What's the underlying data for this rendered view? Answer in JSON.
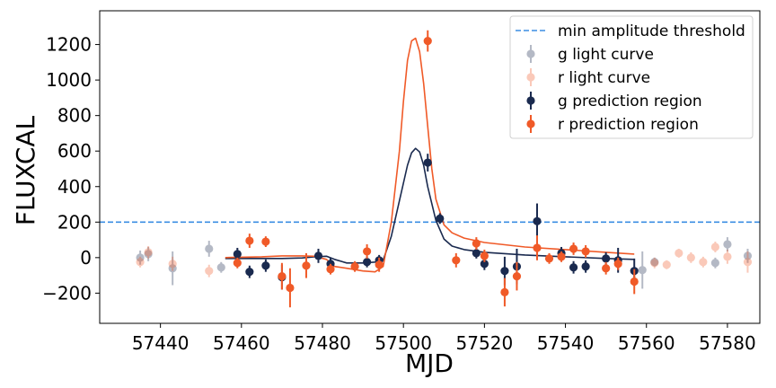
{
  "chart_data": {
    "type": "scatter",
    "xlabel": "MJD",
    "ylabel": "FLUXCAL",
    "xlim": [
      57425,
      57588
    ],
    "ylim": [
      -370,
      1390
    ],
    "xticks": [
      57440,
      57460,
      57480,
      57500,
      57520,
      57540,
      57560,
      57580
    ],
    "yticks": [
      -200,
      0,
      200,
      400,
      600,
      800,
      1000,
      1200
    ],
    "threshold": 200,
    "legend_position": "top-right",
    "colors": {
      "g": "#1a2a4f",
      "r": "#f05a28",
      "threshold": "#3b8ee3"
    },
    "legend": [
      {
        "label": "min amplitude threshold",
        "kind": "dash",
        "color": "#3b8ee3"
      },
      {
        "label": "g light curve",
        "kind": "point",
        "color": "#1a2a4f",
        "faded": true
      },
      {
        "label": "r light curve",
        "kind": "point",
        "color": "#f05a28",
        "faded": true
      },
      {
        "label": "g  prediction region",
        "kind": "point",
        "color": "#1a2a4f",
        "faded": false
      },
      {
        "label": "r  prediction region",
        "kind": "point",
        "color": "#f05a28",
        "faded": false
      }
    ],
    "series": [
      {
        "name": "g light curve",
        "color": "#1a2a4f",
        "points": [
          {
            "x": 57435,
            "y": 0,
            "err": 40
          },
          {
            "x": 57437,
            "y": 20,
            "err": 40
          },
          {
            "x": 57443,
            "y": -60,
            "err": 95
          },
          {
            "x": 57452,
            "y": 50,
            "err": 45
          },
          {
            "x": 57455,
            "y": -55,
            "err": 30
          },
          {
            "x": 57559,
            "y": -70,
            "err": 105
          },
          {
            "x": 57562,
            "y": -25,
            "err": 25
          },
          {
            "x": 57577,
            "y": -30,
            "err": 30
          },
          {
            "x": 57580,
            "y": 75,
            "err": 40
          },
          {
            "x": 57585,
            "y": 10,
            "err": 40
          }
        ]
      },
      {
        "name": "r light curve",
        "color": "#f05a28",
        "points": [
          {
            "x": 57435,
            "y": -25,
            "err": 30
          },
          {
            "x": 57437,
            "y": 30,
            "err": 35
          },
          {
            "x": 57443,
            "y": -35,
            "err": 40
          },
          {
            "x": 57452,
            "y": -75,
            "err": 35
          },
          {
            "x": 57562,
            "y": -30,
            "err": 30
          },
          {
            "x": 57565,
            "y": -40,
            "err": 25
          },
          {
            "x": 57568,
            "y": 25,
            "err": 25
          },
          {
            "x": 57571,
            "y": 0,
            "err": 30
          },
          {
            "x": 57574,
            "y": -25,
            "err": 30
          },
          {
            "x": 57577,
            "y": 60,
            "err": 30
          },
          {
            "x": 57580,
            "y": 5,
            "err": 40
          },
          {
            "x": 57585,
            "y": -25,
            "err": 60
          }
        ]
      },
      {
        "name": "g  prediction region",
        "color": "#1a2a4f",
        "points": [
          {
            "x": 57459,
            "y": 20,
            "err": 35
          },
          {
            "x": 57462,
            "y": -80,
            "err": 35
          },
          {
            "x": 57466,
            "y": -45,
            "err": 35
          },
          {
            "x": 57470,
            "y": -110,
            "err": 70
          },
          {
            "x": 57479,
            "y": 10,
            "err": 40
          },
          {
            "x": 57482,
            "y": -35,
            "err": 35
          },
          {
            "x": 57491,
            "y": -25,
            "err": 30
          },
          {
            "x": 57494,
            "y": -15,
            "err": 30
          },
          {
            "x": 57506,
            "y": 535,
            "err": 50
          },
          {
            "x": 57509,
            "y": 220,
            "err": 30
          },
          {
            "x": 57518,
            "y": 25,
            "err": 30
          },
          {
            "x": 57520,
            "y": -35,
            "err": 35
          },
          {
            "x": 57525,
            "y": -75,
            "err": 80
          },
          {
            "x": 57528,
            "y": -50,
            "err": 100
          },
          {
            "x": 57533,
            "y": 205,
            "err": 100
          },
          {
            "x": 57539,
            "y": 25,
            "err": 35
          },
          {
            "x": 57542,
            "y": -55,
            "err": 35
          },
          {
            "x": 57545,
            "y": -50,
            "err": 35
          },
          {
            "x": 57550,
            "y": -5,
            "err": 35
          },
          {
            "x": 57553,
            "y": -15,
            "err": 70
          },
          {
            "x": 57557,
            "y": -75,
            "err": 70
          }
        ]
      },
      {
        "name": "r  prediction region",
        "color": "#f05a28",
        "points": [
          {
            "x": 57459,
            "y": -30,
            "err": 30
          },
          {
            "x": 57462,
            "y": 95,
            "err": 40
          },
          {
            "x": 57466,
            "y": 90,
            "err": 30
          },
          {
            "x": 57470,
            "y": -105,
            "err": 75
          },
          {
            "x": 57472,
            "y": -170,
            "err": 110
          },
          {
            "x": 57476,
            "y": -45,
            "err": 70
          },
          {
            "x": 57482,
            "y": -65,
            "err": 30
          },
          {
            "x": 57488,
            "y": -50,
            "err": 30
          },
          {
            "x": 57491,
            "y": 35,
            "err": 40
          },
          {
            "x": 57494,
            "y": -40,
            "err": 40
          },
          {
            "x": 57506,
            "y": 1220,
            "err": 60
          },
          {
            "x": 57513,
            "y": -15,
            "err": 40
          },
          {
            "x": 57518,
            "y": 80,
            "err": 35
          },
          {
            "x": 57520,
            "y": 10,
            "err": 35
          },
          {
            "x": 57525,
            "y": -195,
            "err": 80
          },
          {
            "x": 57528,
            "y": -105,
            "err": 80
          },
          {
            "x": 57533,
            "y": 55,
            "err": 70
          },
          {
            "x": 57536,
            "y": -5,
            "err": 30
          },
          {
            "x": 57539,
            "y": 5,
            "err": 30
          },
          {
            "x": 57542,
            "y": 50,
            "err": 35
          },
          {
            "x": 57545,
            "y": 35,
            "err": 35
          },
          {
            "x": 57550,
            "y": -60,
            "err": 35
          },
          {
            "x": 57553,
            "y": -35,
            "err": 35
          },
          {
            "x": 57557,
            "y": -135,
            "err": 70
          }
        ]
      }
    ],
    "model_curves": [
      {
        "band": "g",
        "color": "#1a2a4f",
        "x": [
          57456,
          57470,
          57475,
          57478,
          57481,
          57483,
          57486,
          57490,
          57493,
          57495,
          57497,
          57499,
          57501,
          57502,
          57503,
          57504,
          57505,
          57506,
          57508,
          57510,
          57512,
          57515,
          57520,
          57530,
          57540,
          57550,
          57557
        ],
        "y": [
          -5,
          -5,
          -2,
          5,
          8,
          -10,
          -30,
          -30,
          -25,
          -15,
          120,
          320,
          520,
          590,
          615,
          595,
          520,
          400,
          210,
          105,
          65,
          45,
          30,
          15,
          5,
          -5,
          -10
        ]
      },
      {
        "band": "r",
        "color": "#f05a28",
        "x": [
          57456,
          57465,
          57470,
          57475,
          57478,
          57481,
          57483,
          57486,
          57490,
          57493,
          57495,
          57497,
          57499,
          57500,
          57501,
          57502,
          57503,
          57504,
          57505,
          57506,
          57507,
          57508,
          57510,
          57512,
          57515,
          57520,
          57530,
          57540,
          57550,
          57557
        ],
        "y": [
          0,
          5,
          10,
          10,
          8,
          -10,
          -50,
          -60,
          -75,
          -80,
          -50,
          200,
          600,
          880,
          1110,
          1220,
          1235,
          1160,
          980,
          740,
          500,
          330,
          185,
          140,
          110,
          85,
          60,
          45,
          30,
          20
        ]
      }
    ]
  }
}
